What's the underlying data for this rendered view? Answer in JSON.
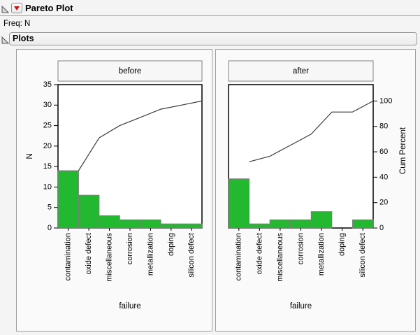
{
  "window": {
    "title": "Pareto Plot",
    "freq_label": "Freq: N",
    "section_title": "Plots"
  },
  "colors": {
    "bar_fill": "#22b82f",
    "bar_stroke": "#7f7f7f",
    "cum_line": "#3c3c3c",
    "plot_frame": "#000000",
    "accent_red": "#cc1111",
    "panel_border": "#9f9f9f",
    "header_fill": "#f7f7f7",
    "header_border": "#828282"
  },
  "axes": {
    "n_max": 35,
    "percent_100_equals_n": 31
  },
  "chart_data": [
    {
      "type": "bar",
      "subtype": "pareto-with-cumulative-line",
      "group_label": "before",
      "categories": [
        "contamination",
        "oxide defect",
        "miscellaneous",
        "corrosion",
        "metallization",
        "doping",
        "silicon defect"
      ],
      "values": [
        14,
        8,
        3,
        2,
        2,
        1,
        1
      ],
      "cumulative": [
        14,
        22,
        25,
        27,
        29,
        30,
        31
      ],
      "cum_percent": [
        45.16,
        70.97,
        80.65,
        87.1,
        93.55,
        96.77,
        100
      ],
      "total": 31,
      "xlabel": "failure",
      "ylabel": "N",
      "ylim": [
        0,
        35
      ],
      "yticks": [
        0,
        5,
        10,
        15,
        20,
        25,
        30,
        35
      ],
      "right_axis": null
    },
    {
      "type": "bar",
      "subtype": "pareto-with-cumulative-line",
      "group_label": "after",
      "categories": [
        "contamination",
        "oxide defect",
        "miscellaneous",
        "corrosion",
        "metallization",
        "doping",
        "silicon defect"
      ],
      "values": [
        12,
        1,
        2,
        2,
        4,
        0,
        2
      ],
      "cumulative": [
        12,
        13,
        15,
        17,
        21,
        21,
        23
      ],
      "cum_percent": [
        52.17,
        56.52,
        65.22,
        73.91,
        91.3,
        91.3,
        100
      ],
      "total": 23,
      "xlabel": "failure",
      "ylabel": null,
      "ylim": [
        0,
        35
      ],
      "yticks": [],
      "right_axis": {
        "label": "Cum Percent",
        "ticks": [
          0,
          20,
          40,
          60,
          80,
          100
        ],
        "lim": [
          0,
          100
        ]
      }
    }
  ]
}
